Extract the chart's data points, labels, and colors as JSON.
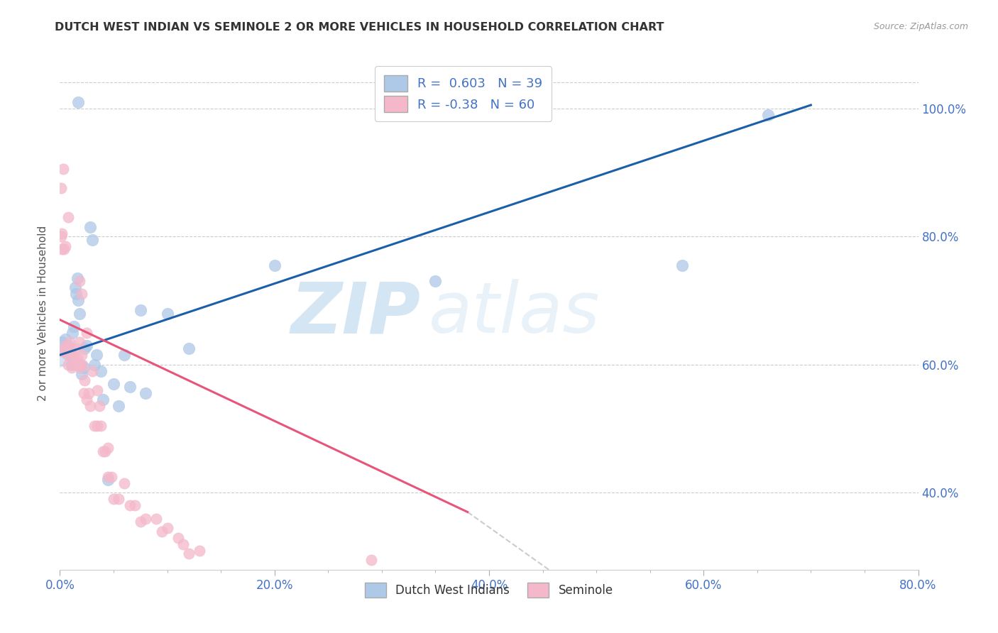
{
  "title": "DUTCH WEST INDIAN VS SEMINOLE 2 OR MORE VEHICLES IN HOUSEHOLD CORRELATION CHART",
  "source": "Source: ZipAtlas.com",
  "ylabel": "2 or more Vehicles in Household",
  "xlim": [
    0.0,
    0.8
  ],
  "ylim": [
    0.28,
    1.08
  ],
  "xtick_labels": [
    "0.0%",
    "",
    "",
    "",
    "",
    "",
    "",
    "",
    "20.0%",
    "",
    "",
    "",
    "",
    "",
    "",
    "",
    "40.0%",
    "",
    "",
    "",
    "",
    "",
    "",
    "",
    "60.0%",
    "",
    "",
    "",
    "",
    "",
    "",
    "",
    "80.0%"
  ],
  "xtick_vals": [
    0.0,
    0.025,
    0.05,
    0.075,
    0.1,
    0.125,
    0.15,
    0.175,
    0.2,
    0.225,
    0.25,
    0.275,
    0.3,
    0.325,
    0.35,
    0.375,
    0.4,
    0.425,
    0.45,
    0.475,
    0.5,
    0.525,
    0.55,
    0.575,
    0.6,
    0.625,
    0.65,
    0.675,
    0.7,
    0.725,
    0.75,
    0.775,
    0.8
  ],
  "ytick_labels": [
    "40.0%",
    "60.0%",
    "80.0%",
    "100.0%"
  ],
  "ytick_vals": [
    0.4,
    0.6,
    0.8,
    1.0
  ],
  "legend_labels": [
    "Dutch West Indians",
    "Seminole"
  ],
  "r_blue": 0.603,
  "r_pink": -0.38,
  "n_blue": 39,
  "n_pink": 60,
  "blue_color": "#aec8e8",
  "pink_color": "#f4b8ca",
  "blue_line_color": "#1a5fa8",
  "pink_line_color": "#e8557a",
  "watermark_zip": "ZIP",
  "watermark_atlas": "atlas",
  "blue_line": [
    [
      0.0,
      0.615
    ],
    [
      0.7,
      1.005
    ]
  ],
  "pink_line_solid": [
    [
      0.0,
      0.67
    ],
    [
      0.38,
      0.37
    ]
  ],
  "pink_line_dash": [
    [
      0.38,
      0.37
    ],
    [
      0.62,
      0.085
    ]
  ],
  "blue_dots": [
    [
      0.002,
      0.635
    ],
    [
      0.005,
      0.64
    ],
    [
      0.007,
      0.625
    ],
    [
      0.008,
      0.63
    ],
    [
      0.009,
      0.615
    ],
    [
      0.01,
      0.62
    ],
    [
      0.011,
      0.6
    ],
    [
      0.012,
      0.65
    ],
    [
      0.013,
      0.66
    ],
    [
      0.014,
      0.72
    ],
    [
      0.015,
      0.71
    ],
    [
      0.016,
      0.735
    ],
    [
      0.017,
      0.7
    ],
    [
      0.018,
      0.68
    ],
    [
      0.019,
      0.6
    ],
    [
      0.02,
      0.585
    ],
    [
      0.022,
      0.595
    ],
    [
      0.023,
      0.625
    ],
    [
      0.025,
      0.63
    ],
    [
      0.028,
      0.815
    ],
    [
      0.03,
      0.795
    ],
    [
      0.032,
      0.6
    ],
    [
      0.034,
      0.615
    ],
    [
      0.038,
      0.59
    ],
    [
      0.04,
      0.545
    ],
    [
      0.045,
      0.42
    ],
    [
      0.05,
      0.57
    ],
    [
      0.055,
      0.535
    ],
    [
      0.06,
      0.615
    ],
    [
      0.065,
      0.565
    ],
    [
      0.075,
      0.685
    ],
    [
      0.08,
      0.555
    ],
    [
      0.1,
      0.68
    ],
    [
      0.12,
      0.625
    ],
    [
      0.2,
      0.755
    ],
    [
      0.35,
      0.73
    ],
    [
      0.58,
      0.755
    ],
    [
      0.66,
      0.99
    ],
    [
      0.017,
      1.01
    ]
  ],
  "pink_dots": [
    [
      0.001,
      0.875
    ],
    [
      0.002,
      0.805
    ],
    [
      0.003,
      0.625
    ],
    [
      0.004,
      0.62
    ],
    [
      0.005,
      0.785
    ],
    [
      0.006,
      0.63
    ],
    [
      0.007,
      0.615
    ],
    [
      0.008,
      0.6
    ],
    [
      0.009,
      0.635
    ],
    [
      0.01,
      0.625
    ],
    [
      0.011,
      0.595
    ],
    [
      0.012,
      0.615
    ],
    [
      0.013,
      0.61
    ],
    [
      0.014,
      0.6
    ],
    [
      0.015,
      0.625
    ],
    [
      0.016,
      0.61
    ],
    [
      0.017,
      0.6
    ],
    [
      0.018,
      0.635
    ],
    [
      0.019,
      0.595
    ],
    [
      0.02,
      0.615
    ],
    [
      0.021,
      0.6
    ],
    [
      0.022,
      0.555
    ],
    [
      0.023,
      0.575
    ],
    [
      0.025,
      0.545
    ],
    [
      0.027,
      0.555
    ],
    [
      0.028,
      0.535
    ],
    [
      0.03,
      0.59
    ],
    [
      0.032,
      0.505
    ],
    [
      0.035,
      0.505
    ],
    [
      0.037,
      0.535
    ],
    [
      0.04,
      0.465
    ],
    [
      0.042,
      0.465
    ],
    [
      0.045,
      0.425
    ],
    [
      0.048,
      0.425
    ],
    [
      0.05,
      0.39
    ],
    [
      0.055,
      0.39
    ],
    [
      0.06,
      0.415
    ],
    [
      0.065,
      0.38
    ],
    [
      0.07,
      0.38
    ],
    [
      0.075,
      0.355
    ],
    [
      0.08,
      0.36
    ],
    [
      0.09,
      0.36
    ],
    [
      0.095,
      0.34
    ],
    [
      0.1,
      0.345
    ],
    [
      0.11,
      0.33
    ],
    [
      0.115,
      0.32
    ],
    [
      0.12,
      0.305
    ],
    [
      0.13,
      0.31
    ],
    [
      0.003,
      0.905
    ],
    [
      0.008,
      0.83
    ],
    [
      0.018,
      0.73
    ],
    [
      0.02,
      0.71
    ],
    [
      0.025,
      0.65
    ],
    [
      0.035,
      0.56
    ],
    [
      0.038,
      0.505
    ],
    [
      0.045,
      0.47
    ],
    [
      0.29,
      0.295
    ],
    [
      0.001,
      0.8
    ],
    [
      0.002,
      0.78
    ],
    [
      0.004,
      0.78
    ]
  ]
}
